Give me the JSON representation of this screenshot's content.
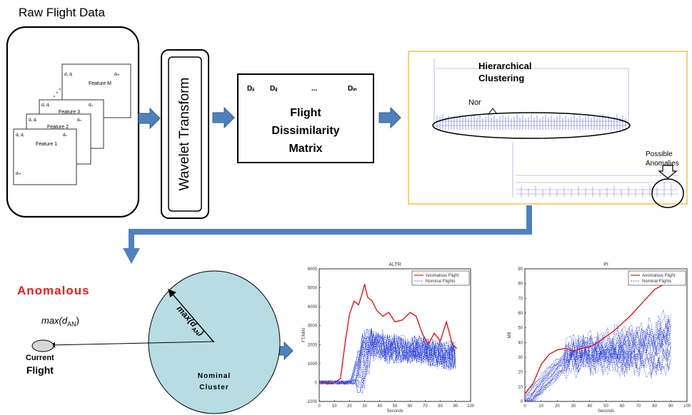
{
  "raw": {
    "title": "Raw Flight Data",
    "features": [
      {
        "name": "Feature M",
        "c1": "d₁ dⱼ",
        "c2": "dₘ",
        "c3": ""
      },
      {
        "name": "Feature 3",
        "c1": "d₁ dⱼ",
        "c2": "dₙ",
        "c3": ""
      },
      {
        "name": "Feature 2",
        "c1": "d₁ dⱼ",
        "c2": "dₙ",
        "c3": ""
      },
      {
        "name": "Feature 1",
        "c1": "d₁ dⱼ",
        "c2": "dₙ",
        "c3": "dₘ"
      }
    ]
  },
  "wavelet": "Wavelet Transform",
  "matrix": {
    "entries": [
      "Dᵢᵢ",
      "Dᵢⱼ",
      "...",
      "Dᵢₙ"
    ],
    "title": [
      "Flight",
      "Dissimilarity",
      "Matrix"
    ]
  },
  "clustering": {
    "title": [
      "Hierarchical",
      "Clustering"
    ],
    "nominal_label": "Nor",
    "anomalies_label": [
      "Possible",
      "Anomalies"
    ]
  },
  "anomaly": {
    "heading": "Anomalous",
    "distance": "max(d",
    "distance_sub": "AN",
    "distance_close": ")",
    "current": [
      "Current",
      "Flight"
    ],
    "cluster": [
      "Nominal",
      "Cluster"
    ],
    "radius_label": "max(d",
    "radius_sub": "AN",
    "radius_close": ")"
  },
  "colors": {
    "accent_arrow": "#4f81bd",
    "connector": "#4f81bd",
    "cluster_fill": "#b7dde3",
    "anomalous_text": "#e02020",
    "orange_border": "#f5c04a"
  },
  "chart_data": [
    {
      "type": "line",
      "title": "ALTR",
      "xlabel": "Seconds",
      "ylabel": "FT/MIN",
      "xlim": [
        0,
        100
      ],
      "ylim": [
        -1000,
        6000
      ],
      "xticks": [
        0,
        10,
        20,
        30,
        40,
        50,
        60,
        70,
        80,
        90,
        100
      ],
      "yticks": [
        -1000,
        0,
        1000,
        2000,
        3000,
        4000,
        5000,
        6000
      ],
      "legend": [
        "Anomalous Flight",
        "Nominal Flights"
      ],
      "legend_position": "top-right",
      "series": [
        {
          "name": "Anomalous Flight",
          "x": [
            0,
            5,
            10,
            14,
            17,
            20,
            23,
            26,
            28,
            30,
            32,
            35,
            38,
            42,
            46,
            50,
            55,
            60,
            64,
            68,
            72,
            76,
            80,
            84,
            88,
            91
          ],
          "y": [
            0,
            -50,
            0,
            200,
            2000,
            3600,
            4300,
            4100,
            4600,
            5200,
            4500,
            4300,
            3800,
            3500,
            3700,
            3200,
            3300,
            3700,
            3500,
            2600,
            2000,
            2600,
            2200,
            3200,
            2000,
            1800
          ]
        },
        {
          "name": "Nominal Flights",
          "x": [
            0,
            10,
            20,
            25,
            30,
            35,
            40,
            50,
            60,
            70,
            80,
            90
          ],
          "y": [
            0,
            0,
            0,
            100,
            1500,
            2200,
            2000,
            1700,
            1800,
            1700,
            1500,
            1400
          ]
        }
      ]
    },
    {
      "type": "line",
      "title": "PI",
      "xlabel": "Seconds",
      "ylabel": "MB",
      "xlim": [
        0,
        100
      ],
      "ylim": [
        0,
        90
      ],
      "xticks": [
        0,
        10,
        20,
        30,
        40,
        50,
        60,
        70,
        80,
        90,
        100
      ],
      "yticks": [
        0,
        10,
        20,
        30,
        40,
        50,
        60,
        70,
        80,
        90
      ],
      "legend": [
        "Anomalous Flight",
        "Nominal Flights"
      ],
      "legend_position": "top-right",
      "series": [
        {
          "name": "Anomalous Flight",
          "x": [
            0,
            5,
            10,
            15,
            20,
            25,
            30,
            35,
            40,
            45,
            50,
            55,
            60,
            65,
            70,
            75,
            80,
            85,
            90
          ],
          "y": [
            5,
            12,
            25,
            32,
            35,
            36,
            34,
            36,
            37,
            40,
            44,
            48,
            53,
            58,
            64,
            70,
            76,
            79,
            82
          ]
        },
        {
          "name": "Nominal Flights",
          "x": [
            0,
            10,
            20,
            30,
            40,
            50,
            60,
            70,
            80,
            90
          ],
          "y": [
            0,
            12,
            24,
            32,
            33,
            34,
            35,
            36,
            38,
            42
          ]
        }
      ]
    }
  ]
}
